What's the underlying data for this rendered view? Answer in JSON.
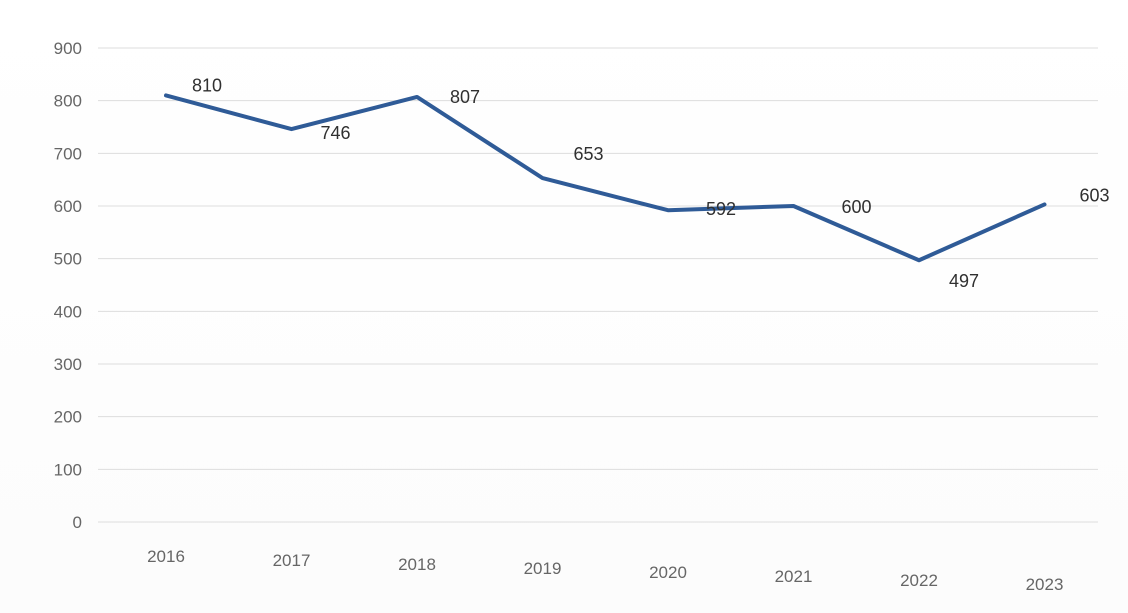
{
  "chart_data": {
    "type": "line",
    "x": [
      "2016",
      "2017",
      "2018",
      "2019",
      "2020",
      "2021",
      "2022",
      "2023"
    ],
    "series": [
      {
        "values": [
          810,
          746,
          807,
          653,
          592,
          600,
          497,
          603
        ],
        "color": "#2f5b97"
      }
    ],
    "data_labels": [
      "810",
      "746",
      "807",
      "653",
      "592",
      "600",
      "497",
      "603"
    ],
    "yticks": [
      "0",
      "100",
      "200",
      "300",
      "400",
      "500",
      "600",
      "700",
      "800",
      "900"
    ],
    "ylim": [
      0,
      900
    ],
    "grid": true,
    "legend": "none",
    "title": "",
    "xlabel": "",
    "ylabel": ""
  }
}
